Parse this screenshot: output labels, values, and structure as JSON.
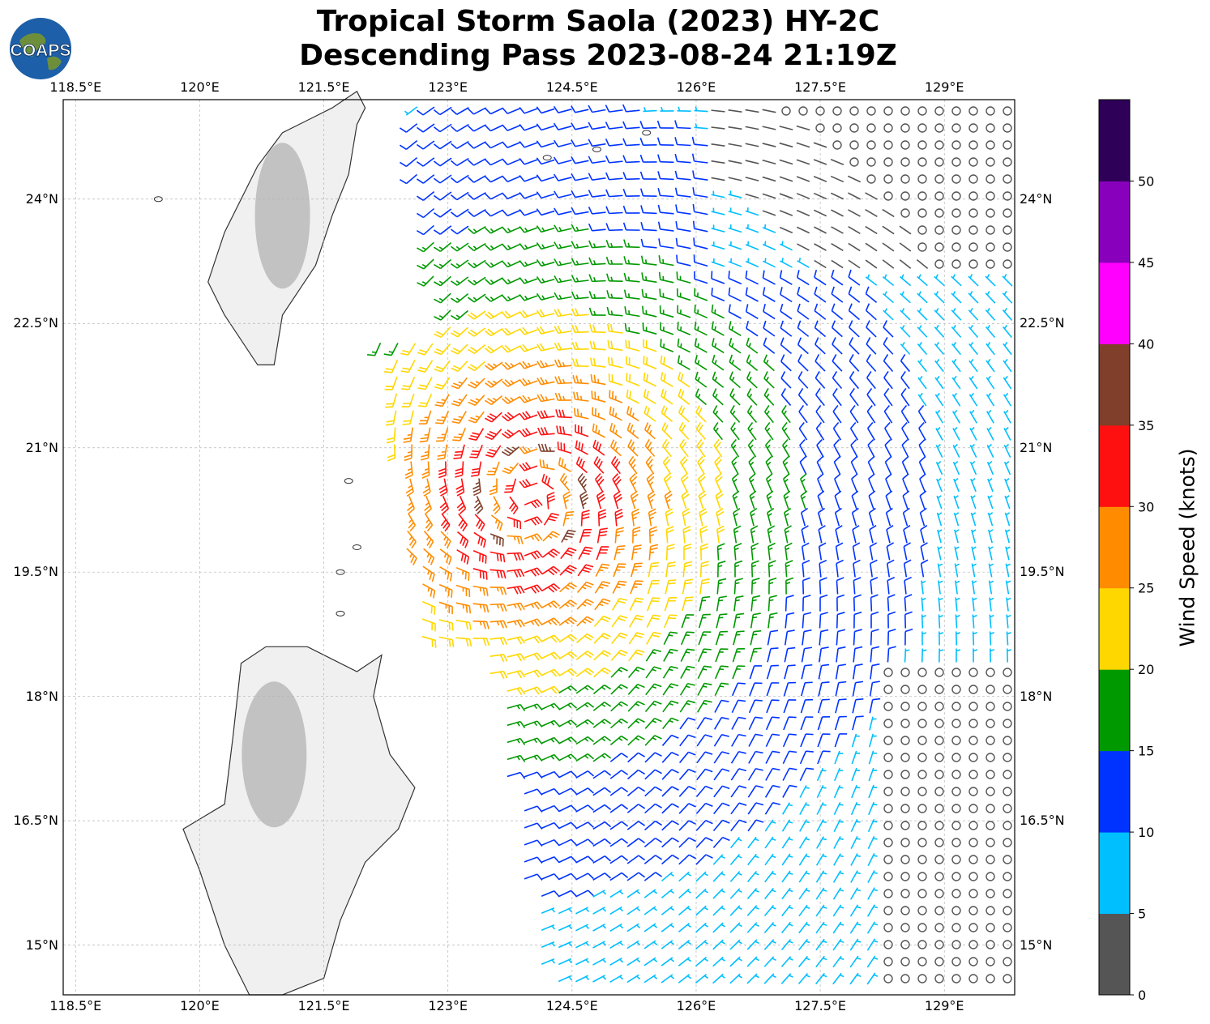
{
  "title": {
    "line1": "Tropical Storm Saola (2023) HY-2C",
    "line2": "Descending Pass 2023-08-24 21:19Z"
  },
  "logo": {
    "text": "COAPS",
    "icon": "globe-logo-icon"
  },
  "colors": {
    "land_outline": "#333333",
    "grid": "#b4b4b4",
    "colorbar": [
      "#555555",
      "#00bfff",
      "#0033ff",
      "#009900",
      "#ffd700",
      "#ff8c00",
      "#ff1010",
      "#7f3f2a",
      "#ff00ff",
      "#8800bb",
      "#2e0058"
    ]
  },
  "map": {
    "lon_labels": [
      "118.5°E",
      "120°E",
      "121.5°E",
      "123°E",
      "124.5°E",
      "126°E",
      "127.5°E",
      "129°E"
    ],
    "lat_labels": [
      "24°N",
      "22.5°N",
      "21°N",
      "19.5°N",
      "18°N",
      "16.5°N",
      "15°N"
    ],
    "extent": {
      "lon": [
        118.35,
        129.85
      ],
      "lat": [
        14.4,
        25.2
      ]
    },
    "storm_center": {
      "lon": 124.0,
      "lat": 20.4
    },
    "land": [
      "Taiwan",
      "Luzon"
    ]
  },
  "colorbar": {
    "label": "Wind Speed (knots)",
    "bounds": [
      0,
      5,
      10,
      15,
      20,
      25,
      30,
      35,
      40,
      45,
      50,
      55
    ],
    "tick_labels": [
      "0",
      "5",
      "10",
      "15",
      "20",
      "25",
      "30",
      "35",
      "40",
      "45",
      "50"
    ]
  },
  "chart_data": {
    "type": "wind_barbs",
    "units": "knots",
    "description_source": "HY-2C scatterometer swath",
    "x_range_lon": [
      118.35,
      129.85
    ],
    "y_range_lat": [
      14.4,
      25.2
    ],
    "wind_speed_bins_kt": [
      0,
      5,
      10,
      15,
      20,
      25,
      30,
      35,
      40,
      45,
      50
    ],
    "max_wind_kt": 35
  }
}
